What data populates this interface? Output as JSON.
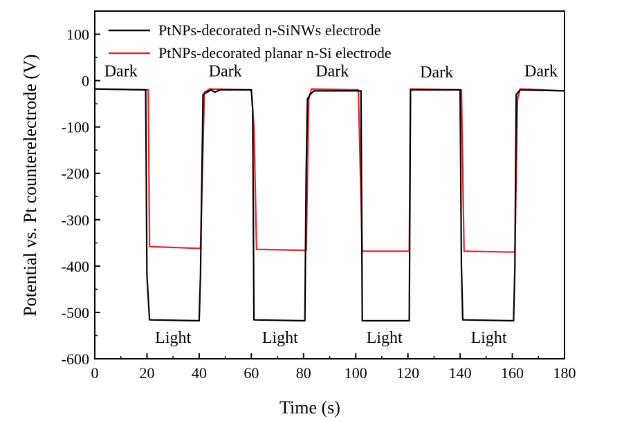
{
  "chart_data": {
    "type": "line",
    "xlabel": "Time (s)",
    "ylabel": "Potential vs. Pt counterelectrode (V)",
    "xlim": [
      0,
      180
    ],
    "ylim": [
      -600,
      150
    ],
    "xticks": [
      0,
      20,
      40,
      60,
      80,
      100,
      120,
      140,
      160,
      180
    ],
    "yticks": [
      100,
      0,
      -100,
      -200,
      -300,
      -400,
      -500,
      -600
    ],
    "ytick_labels": [
      "100",
      "0",
      "-100",
      "-200",
      "-300",
      "-400",
      "-500",
      "-600"
    ],
    "grid": false,
    "legend_position": "top-left",
    "series": [
      {
        "name": "PtNPs-decorated n-SiNWs electrode",
        "color": "#000000",
        "points": [
          [
            0,
            -18
          ],
          [
            19.5,
            -20
          ],
          [
            20,
            -420
          ],
          [
            21,
            -516
          ],
          [
            40,
            -518
          ],
          [
            40.5,
            -420
          ],
          [
            41.5,
            -30
          ],
          [
            43,
            -25
          ],
          [
            44.5,
            -20
          ],
          [
            46,
            -25
          ],
          [
            48,
            -20
          ],
          [
            60,
            -20
          ],
          [
            60.5,
            -60
          ],
          [
            61,
            -516
          ],
          [
            80.5,
            -518
          ],
          [
            81,
            -200
          ],
          [
            81.5,
            -40
          ],
          [
            82.5,
            -30
          ],
          [
            84,
            -22
          ],
          [
            100,
            -22
          ],
          [
            102,
            -22
          ],
          [
            102.5,
            -518
          ],
          [
            120.5,
            -518
          ],
          [
            121,
            -20
          ],
          [
            140,
            -20
          ],
          [
            140.5,
            -400
          ],
          [
            141,
            -516
          ],
          [
            160.5,
            -518
          ],
          [
            161,
            -400
          ],
          [
            161.5,
            -30
          ],
          [
            163,
            -20
          ],
          [
            180,
            -22
          ]
        ]
      },
      {
        "name": "PtNPs-decorated planar n-Si electrode",
        "color": "#e8202a",
        "points": [
          [
            0,
            -18
          ],
          [
            20.5,
            -20
          ],
          [
            21,
            -358
          ],
          [
            40.5,
            -362
          ],
          [
            42,
            -25
          ],
          [
            44,
            -18
          ],
          [
            60,
            -20
          ],
          [
            61,
            -100
          ],
          [
            62,
            -364
          ],
          [
            81,
            -366
          ],
          [
            82,
            -40
          ],
          [
            83,
            -18
          ],
          [
            101,
            -20
          ],
          [
            102.5,
            -368
          ],
          [
            120.5,
            -368
          ],
          [
            121,
            -18
          ],
          [
            140.5,
            -20
          ],
          [
            141.5,
            -368
          ],
          [
            161,
            -370
          ],
          [
            162,
            -40
          ],
          [
            163,
            -18
          ],
          [
            180,
            -22
          ]
        ]
      }
    ],
    "annotations": [
      {
        "text": "Dark",
        "x": 10,
        "y": 0
      },
      {
        "text": "Dark",
        "x": 50,
        "y": 0
      },
      {
        "text": "Dark",
        "x": 91,
        "y": 0
      },
      {
        "text": "Dark",
        "x": 131,
        "y": -2
      },
      {
        "text": "Dark",
        "x": 171,
        "y": 0
      },
      {
        "text": "Light",
        "x": 30,
        "y": -575
      },
      {
        "text": "Light",
        "x": 71,
        "y": -575
      },
      {
        "text": "Light",
        "x": 111,
        "y": -575
      },
      {
        "text": "Light",
        "x": 151,
        "y": -575
      }
    ]
  }
}
